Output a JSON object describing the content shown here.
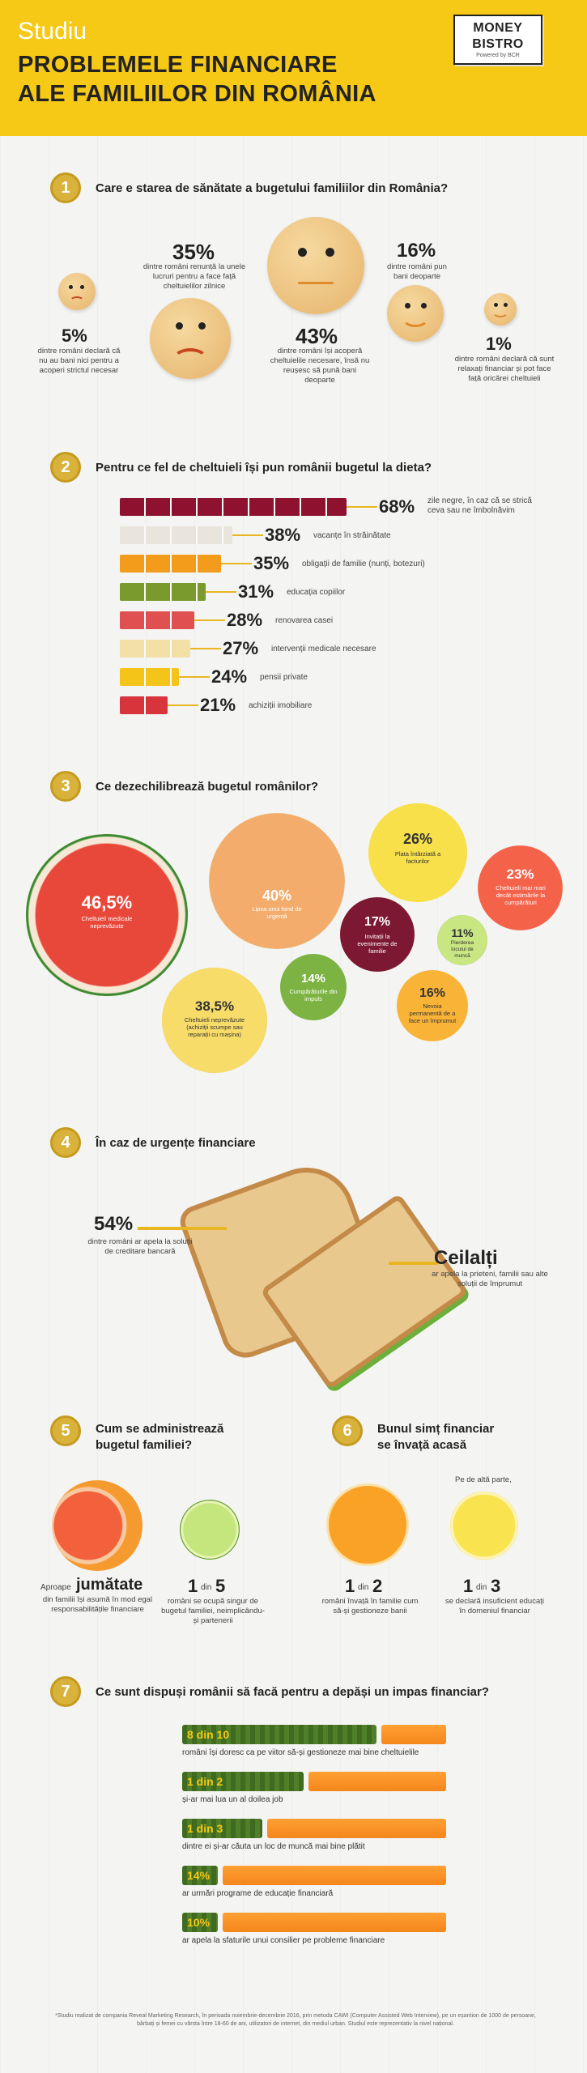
{
  "header": {
    "kicker": "Studiu",
    "title_line1": "PROBLEMELE FINANCIARE",
    "title_line2": "ALE FAMILIILOR DIN ROMÂNIA",
    "logo_line1": "MONEY",
    "logo_line2": "BISTRO",
    "logo_line3": "Powered by BCR"
  },
  "s1": {
    "num": "1",
    "title": "Care e starea de sănătate a bugetului familiilor din România?",
    "items": [
      {
        "pct": "5%",
        "text": "dintre români declară că nu au bani nici pentru a acoperi strictul necesar"
      },
      {
        "pct": "35%",
        "text": "dintre români renunță la unele lucruri pentru a face față cheltuielilor zilnice"
      },
      {
        "pct": "43%",
        "text": "dintre români își acoperă cheltuielile necesare, însă nu reușesc să pună bani deoparte"
      },
      {
        "pct": "16%",
        "text": "dintre români pun bani deoparte"
      },
      {
        "pct": "1%",
        "text": "dintre români declară că sunt relaxați financiar și pot face față oricărei cheltuieli"
      }
    ]
  },
  "s2": {
    "num": "2",
    "title": "Pentru ce fel de cheltuieli își pun românii bugetul la dieta?",
    "bars": [
      {
        "pct": "68%",
        "label": "zile negre, în caz că se strică ceva sau ne îmbolnăvim",
        "value": 68,
        "color": "#8e1230"
      },
      {
        "pct": "38%",
        "label": "vacanțe în străinătate",
        "value": 38,
        "color": "#e9e4dc"
      },
      {
        "pct": "35%",
        "label": "obligații de familie (nunți, botezuri)",
        "value": 35,
        "color": "#f39c1c"
      },
      {
        "pct": "31%",
        "label": "educația copiilor",
        "value": 31,
        "color": "#7a9a2e"
      },
      {
        "pct": "28%",
        "label": "renovarea casei",
        "value": 28,
        "color": "#e05050"
      },
      {
        "pct": "27%",
        "label": "intervenții medicale necesare",
        "value": 27,
        "color": "#f2e0a6"
      },
      {
        "pct": "24%",
        "label": "pensii private",
        "value": 24,
        "color": "#f5c418"
      },
      {
        "pct": "21%",
        "label": "achiziții imobiliare",
        "value": 21,
        "color": "#d8343c"
      }
    ]
  },
  "s3": {
    "num": "3",
    "title": "Ce dezechilibrează bugetul românilor?",
    "items": [
      {
        "pct": "46,5%",
        "label": "Cheltuieli medicale neprevăzute",
        "color": "#d93a2b"
      },
      {
        "pct": "40%",
        "label": "Lipsa unui fond de urgență",
        "color": "#f0a261"
      },
      {
        "pct": "26%",
        "label": "Plata întârziată a facturilor",
        "color": "#f5d92e"
      },
      {
        "pct": "23%",
        "label": "Cheltuieli mai mari decât estimările la cumpărături",
        "color": "#f05a3c"
      },
      {
        "pct": "17%",
        "label": "Invitații la evenimente de familie",
        "color": "#8c1f3a"
      },
      {
        "pct": "11%",
        "label": "Pierderea locului de muncă",
        "color": "#a9d256"
      },
      {
        "pct": "14%",
        "label": "Cumpărăturile din impuls",
        "color": "#6ea62c"
      },
      {
        "pct": "38,5%",
        "label": "Cheltuieli neprevăzute (achiziții scumpe sau reparații cu mașina)",
        "color": "#f6d24a"
      },
      {
        "pct": "16%",
        "label": "Nevoia permanentă de a face un împrumut",
        "color": "#f6a623"
      }
    ]
  },
  "s4": {
    "num": "4",
    "title": "În caz de urgențe financiare",
    "left_pct": "54%",
    "left_text": "dintre români ar apela la soluții de creditare bancară",
    "right_title": "Ceilalți",
    "right_text": "ar apela la prieteni, familii sau alte soluții de împrumut"
  },
  "s5": {
    "num": "5",
    "title_line1": "Cum se administrează",
    "title_line2": "bugetul familiei?",
    "a_pre": "Aproape",
    "a_big": "jumătate",
    "a_text": "din familii își asumă în mod egal responsabilitățile financiare",
    "b_big": "1",
    "b_din": "din",
    "b_num": "5",
    "b_text": "români se ocupă singur de bugetul familiei, neimplicându-și partenerii"
  },
  "s6": {
    "num": "6",
    "title_line1": "Bunul simț financiar",
    "title_line2": "se învață acasă",
    "a_big": "1",
    "a_din": "din",
    "a_num": "2",
    "a_text": "români învață în familie cum să-și gestioneze banii",
    "b_pre": "Pe de altă parte,",
    "b_big": "1",
    "b_din": "din",
    "b_num": "3",
    "b_text": "se declară insuficient educați în domeniul financiar"
  },
  "s7": {
    "num": "7",
    "title": "Ce sunt dispuși românii să facă pentru a depăși un impas financiar?",
    "rows": [
      {
        "num": "8 din 10",
        "text": "români își doresc ca pe viitor să-și gestioneze mai bine cheltuielile",
        "value": 80
      },
      {
        "num": "1 din 2",
        "text": "și-ar mai lua un al doilea job",
        "value": 50
      },
      {
        "num": "1 din 3",
        "text": "dintre ei și-ar căuta un loc de muncă mai bine plătit",
        "value": 33
      },
      {
        "num": "14%",
        "text": "ar urmări programe de educație financiară",
        "value": 14
      },
      {
        "num": "10%",
        "text": "ar apela la sfaturile unui consilier pe probleme financiare",
        "value": 10
      }
    ]
  },
  "footer": "*Studiu realizat de compania Reveal Marketing Research, în perioada noiembrie-decembrie 2016, prin metoda CAWI (Computer Assisted Web Interview), pe un eșantion de 1000 de persoane, bărbați și femei cu vârsta între 18-60 de ani, utilizatori de internet, din mediul urban. Studiul este reprezentativ la nivel național."
}
